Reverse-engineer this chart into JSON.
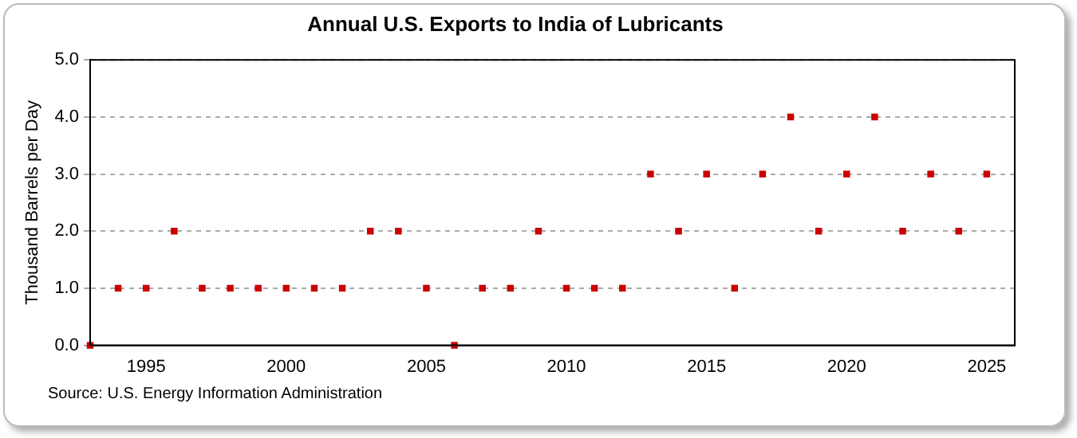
{
  "chart_data": {
    "type": "scatter",
    "title": "Annual U.S. Exports to India of Lubricants",
    "ylabel": "Thousand Barrels per Day",
    "annotations": [
      "Source: U.S. Energy Information Administration"
    ],
    "x": [
      1993,
      1994,
      1995,
      1996,
      1997,
      1998,
      1999,
      2000,
      2001,
      2002,
      2003,
      2004,
      2005,
      2006,
      2007,
      2008,
      2009,
      2010,
      2011,
      2012,
      2013,
      2014,
      2015,
      2016,
      2017,
      2018,
      2019,
      2020,
      2021,
      2022,
      2023,
      2024,
      2025
    ],
    "series": [
      {
        "color": "#cc0000",
        "values": [
          0,
          1,
          1,
          2,
          1,
          1,
          1,
          1,
          1,
          1,
          2,
          2,
          1,
          0,
          1,
          1,
          2,
          1,
          1,
          1,
          3,
          2,
          3,
          1,
          3,
          4,
          2,
          3,
          4,
          2,
          3,
          2,
          3
        ]
      }
    ],
    "xlim": [
      1993,
      2026
    ],
    "xticks": [
      1995,
      2000,
      2005,
      2010,
      2015,
      2020,
      2025
    ],
    "ylim": [
      0,
      5
    ],
    "yticks": [
      {
        "value": 0,
        "label": "0.0"
      },
      {
        "value": 1,
        "label": "1.0"
      },
      {
        "value": 2,
        "label": "2.0"
      },
      {
        "value": 3,
        "label": "3.0"
      },
      {
        "value": 4,
        "label": "4.0"
      },
      {
        "value": 5,
        "label": "5.0"
      }
    ],
    "grid": "y",
    "marker": "square",
    "legend": false
  }
}
